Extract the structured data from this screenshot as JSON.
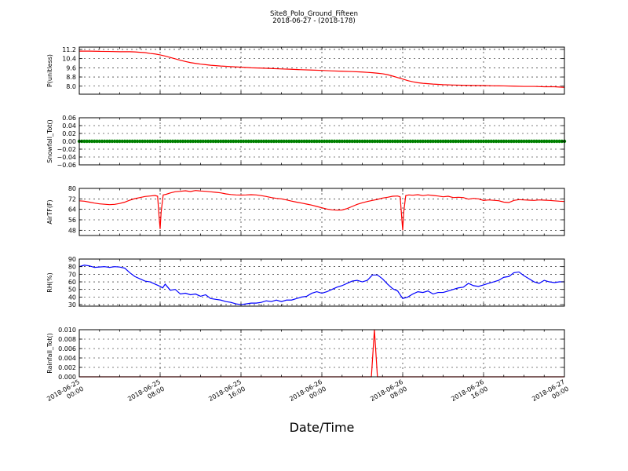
{
  "figure": {
    "title_line1": "Site8_Polo_Ground_Fifteen",
    "title_line2": "2018-06-27 - (2018-178)",
    "xlabel": "Date/Time"
  },
  "chart_data": [
    {
      "id": "p",
      "type": "line",
      "ylabel": "P(unitless)",
      "ylim": [
        7.3,
        11.4
      ],
      "yticks": [
        8.0,
        8.8,
        9.6,
        10.4,
        11.2
      ],
      "ytick_labels": [
        "8.0",
        "8.8",
        "9.6",
        "10.4",
        "11.2"
      ],
      "color": "#ff0000",
      "x": [
        0,
        1,
        2,
        3,
        4,
        5,
        5.5,
        6,
        6.5,
        7,
        7.5,
        8,
        8.5,
        9,
        9.5,
        10,
        10.5,
        11,
        11.5,
        12,
        12.5,
        13,
        14,
        15,
        16,
        17,
        18,
        19,
        20,
        21,
        22,
        23,
        24,
        25,
        26,
        27,
        28,
        28.5,
        29,
        29.5,
        30,
        30.5,
        31,
        31.5,
        32,
        32.5,
        33,
        33.5,
        34,
        35,
        36,
        37,
        38,
        39,
        40,
        41,
        42,
        43,
        44,
        45,
        46,
        47,
        48
      ],
      "y": [
        11.05,
        11.05,
        11.03,
        11.02,
        11.0,
        11.0,
        10.98,
        10.95,
        10.92,
        10.85,
        10.8,
        10.72,
        10.62,
        10.5,
        10.38,
        10.25,
        10.15,
        10.05,
        9.98,
        9.92,
        9.87,
        9.82,
        9.75,
        9.7,
        9.65,
        9.6,
        9.57,
        9.54,
        9.5,
        9.47,
        9.43,
        9.4,
        9.37,
        9.33,
        9.3,
        9.27,
        9.23,
        9.2,
        9.17,
        9.13,
        9.08,
        9.0,
        8.88,
        8.75,
        8.62,
        8.48,
        8.38,
        8.3,
        8.25,
        8.18,
        8.13,
        8.1,
        8.08,
        8.06,
        8.05,
        8.03,
        8.02,
        8.0,
        7.98,
        7.98,
        7.95,
        7.95,
        7.9
      ]
    },
    {
      "id": "snow",
      "type": "scatter",
      "ylabel": "Snowfall_Tot()",
      "ylim": [
        -0.06,
        0.06
      ],
      "yticks": [
        -0.06,
        -0.04,
        -0.02,
        0.0,
        0.02,
        0.04,
        0.06
      ],
      "ytick_labels": [
        "−0.06",
        "−0.04",
        "−0.02",
        "0.00",
        "0.02",
        "0.04",
        "0.06"
      ],
      "color": "#008000",
      "x_start": 0,
      "x_end": 48,
      "x_step": 0.25,
      "value": 0.0
    },
    {
      "id": "air",
      "type": "line",
      "ylabel": "AirTF(F)",
      "ylim": [
        44,
        80
      ],
      "yticks": [
        48,
        56,
        64,
        72,
        80
      ],
      "ytick_labels": [
        "48",
        "56",
        "64",
        "72",
        "80"
      ],
      "color": "#ff0000",
      "x": [
        0,
        0.5,
        1,
        1.5,
        2,
        2.5,
        3,
        3.5,
        4,
        4.5,
        5,
        5.5,
        6,
        6.5,
        7,
        7.5,
        7.75,
        7.9,
        8.0,
        8.1,
        8.3,
        8.6,
        9,
        9.5,
        10,
        10.5,
        11,
        11.5,
        12,
        12.5,
        13,
        13.5,
        14,
        14.5,
        15,
        15.5,
        16,
        16.5,
        17,
        17.5,
        18,
        18.5,
        19,
        19.5,
        20,
        20.5,
        21,
        21.5,
        22,
        22.5,
        23,
        23.5,
        24,
        24.5,
        25,
        25.5,
        26,
        26.5,
        27,
        27.5,
        28,
        28.5,
        29,
        29.5,
        30,
        30.5,
        31,
        31.5,
        31.75,
        31.9,
        32.0,
        32.1,
        32.3,
        32.6,
        33,
        33.5,
        34,
        34.5,
        35,
        35.5,
        36,
        36.5,
        37,
        37.5,
        38,
        38.5,
        39,
        39.5,
        40,
        40.5,
        41,
        41.5,
        42,
        42.5,
        43,
        43.5,
        44,
        44.5,
        45,
        45.5,
        46,
        46.5,
        47,
        47.5,
        48
      ],
      "y": [
        70.5,
        70.2,
        69.5,
        68.8,
        68.2,
        67.9,
        67.6,
        67.8,
        68.5,
        69.5,
        71,
        72.2,
        73,
        73.8,
        74.2,
        74.6,
        74.0,
        58,
        49,
        62,
        75,
        75.5,
        76.5,
        77.5,
        77.8,
        78.2,
        77.6,
        78.4,
        78,
        77.8,
        77.4,
        77,
        76.6,
        75.8,
        75.3,
        75,
        74.9,
        75,
        75.2,
        75,
        74.5,
        73.8,
        73,
        72.4,
        72,
        71.2,
        70.3,
        69.5,
        68.8,
        68,
        67.2,
        66.2,
        65.2,
        64.2,
        63.6,
        63.4,
        63.5,
        64.6,
        66.2,
        67.8,
        69,
        70,
        70.8,
        71.6,
        72.6,
        73.2,
        74,
        74.2,
        73.5,
        58,
        48,
        62,
        74.5,
        75,
        74.8,
        75.2,
        74.5,
        75,
        74.6,
        74.2,
        73.6,
        74.0,
        73,
        73.2,
        73,
        71.8,
        72.4,
        72,
        70.8,
        71.2,
        70.9,
        70.6,
        69.5,
        69.2,
        70.8,
        71.4,
        71.2,
        71.0,
        70.8,
        71.2,
        71,
        70.8,
        70.5,
        70.2,
        70
      ]
    },
    {
      "id": "rh",
      "type": "line",
      "ylabel": "RH(%)",
      "ylim": [
        28,
        90
      ],
      "yticks": [
        30,
        40,
        50,
        60,
        70,
        80,
        90
      ],
      "ytick_labels": [
        "30",
        "40",
        "50",
        "60",
        "70",
        "80",
        "90"
      ],
      "color": "#0000ff",
      "x": [
        0,
        0.5,
        1,
        1.5,
        2,
        2.5,
        3,
        3.5,
        4,
        4.5,
        5,
        5.5,
        6,
        6.5,
        7,
        7.5,
        8,
        8.25,
        8.5,
        8.75,
        9,
        9.5,
        10,
        10.5,
        11,
        11.5,
        12,
        12.5,
        13,
        13.5,
        14,
        14.5,
        15,
        15.5,
        16,
        16.5,
        17,
        17.5,
        18,
        18.5,
        19,
        19.5,
        20,
        20.5,
        21,
        21.5,
        22,
        22.5,
        23,
        23.5,
        24,
        24.5,
        25,
        25.5,
        26,
        26.5,
        27,
        27.5,
        28,
        28.5,
        29,
        29.5,
        30,
        30.5,
        31,
        31.5,
        32,
        32.5,
        33,
        33.5,
        34,
        34.5,
        35,
        35.5,
        36,
        36.5,
        37,
        37.5,
        38,
        38.5,
        39,
        39.5,
        40,
        40.5,
        41,
        41.5,
        42,
        42.5,
        43,
        43.5,
        44,
        44.5,
        45,
        45.5,
        46,
        46.5,
        47,
        47.5,
        48
      ],
      "y": [
        80,
        82,
        81,
        79,
        79.5,
        80,
        79,
        80,
        79.5,
        78,
        72,
        67,
        64,
        61,
        60,
        57,
        54,
        52,
        57,
        53,
        49,
        50,
        44,
        45,
        43,
        44,
        41,
        43,
        38,
        37,
        36,
        34,
        33,
        31,
        30,
        31,
        32,
        32,
        33,
        35,
        34,
        36,
        34,
        36,
        36,
        38,
        40,
        41,
        45,
        47,
        45,
        47,
        50,
        53,
        55,
        58,
        61,
        62,
        60,
        62,
        69,
        69,
        64,
        57,
        51,
        48,
        38,
        40,
        44,
        47,
        46,
        48,
        44,
        46,
        46,
        48,
        50,
        52,
        53,
        58,
        55,
        54,
        56,
        58,
        60,
        62,
        66,
        67,
        72,
        73,
        68,
        64,
        60,
        58,
        62,
        60,
        59,
        60,
        60
      ]
    },
    {
      "id": "rain",
      "type": "line",
      "ylabel": "Rainfall_Tot()",
      "ylim": [
        0,
        0.01
      ],
      "yticks": [
        0.0,
        0.002,
        0.004,
        0.006,
        0.008,
        0.01
      ],
      "ytick_labels": [
        "0.000",
        "0.002",
        "0.004",
        "0.006",
        "0.008",
        "0.010"
      ],
      "color": "#ff0000",
      "x": [
        0,
        28.9,
        29.2,
        29.5,
        48
      ],
      "y": [
        0,
        0,
        0.01,
        0,
        0
      ]
    }
  ],
  "xaxis": {
    "range_hours": [
      0,
      48
    ],
    "ticks_hours": [
      0,
      8,
      16,
      24,
      32,
      40,
      48
    ],
    "tick_labels": [
      [
        "2018-06-25",
        "00:00"
      ],
      [
        "2018-06-25",
        "08:00"
      ],
      [
        "2018-06-25",
        "16:00"
      ],
      [
        "2018-06-26",
        "00:00"
      ],
      [
        "2018-06-26",
        "08:00"
      ],
      [
        "2018-06-26",
        "16:00"
      ],
      [
        "2018-06-27",
        "00:00"
      ]
    ]
  }
}
